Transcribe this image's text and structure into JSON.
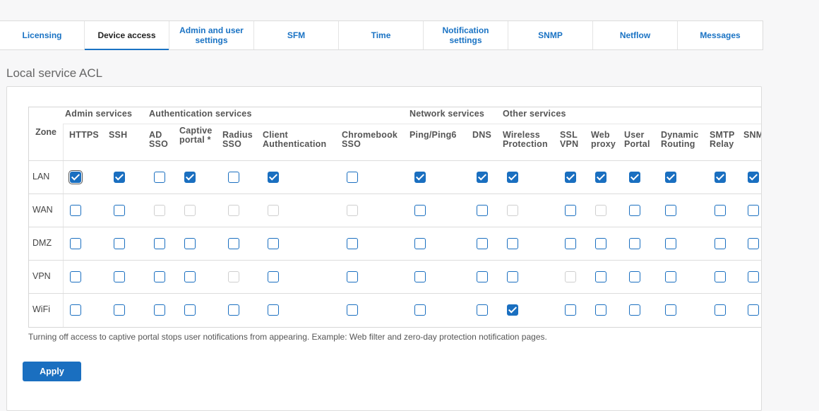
{
  "tabs": [
    {
      "label": "Licensing",
      "active": false
    },
    {
      "label": "Device access",
      "active": true
    },
    {
      "label": "Admin and user settings",
      "active": false
    },
    {
      "label": "SFM",
      "active": false
    },
    {
      "label": "Time",
      "active": false
    },
    {
      "label": "Notification settings",
      "active": false
    },
    {
      "label": "SNMP",
      "active": false
    },
    {
      "label": "Netflow",
      "active": false
    },
    {
      "label": "Messages",
      "active": false
    }
  ],
  "section_title": "Local service ACL",
  "acl": {
    "zone_header": "Zone",
    "groups": [
      "Admin services",
      "Authentication services",
      "Network services",
      "Other services"
    ],
    "columns": [
      "HTTPS",
      "SSH",
      "AD SSO",
      "Captive portal *",
      "Radius SSO",
      "Client Authentication",
      "Chromebook SSO",
      "Ping/Ping6",
      "DNS",
      "Wireless Protection",
      "SSL VPN",
      "Web proxy",
      "User Portal",
      "Dynamic Routing",
      "SMTP Relay",
      "SNMP"
    ],
    "rows": [
      {
        "zone": "LAN",
        "states": [
          "C",
          "C",
          "U",
          "C",
          "U",
          "C",
          "U",
          "C",
          "C",
          "C",
          "C",
          "C",
          "C",
          "C",
          "C",
          "C"
        ]
      },
      {
        "zone": "WAN",
        "states": [
          "U",
          "U",
          "D",
          "D",
          "D",
          "D",
          "D",
          "U",
          "U",
          "D",
          "U",
          "D",
          "U",
          "U",
          "U",
          "U"
        ]
      },
      {
        "zone": "DMZ",
        "states": [
          "U",
          "U",
          "U",
          "U",
          "U",
          "U",
          "U",
          "U",
          "U",
          "U",
          "U",
          "U",
          "U",
          "U",
          "U",
          "U"
        ]
      },
      {
        "zone": "VPN",
        "states": [
          "U",
          "U",
          "U",
          "U",
          "D",
          "U",
          "U",
          "U",
          "U",
          "U",
          "D",
          "U",
          "U",
          "U",
          "U",
          "U"
        ]
      },
      {
        "zone": "WiFi",
        "states": [
          "U",
          "U",
          "U",
          "U",
          "U",
          "U",
          "U",
          "U",
          "U",
          "C",
          "U",
          "U",
          "U",
          "U",
          "U",
          "U"
        ]
      }
    ]
  },
  "note": "Turning off access to captive portal stops user notifications from appearing. Example: Web filter and zero-day protection notification pages.",
  "apply_label": "Apply",
  "colors": {
    "accent": "#1a6fc0",
    "disabled": "#cfcfcf"
  }
}
